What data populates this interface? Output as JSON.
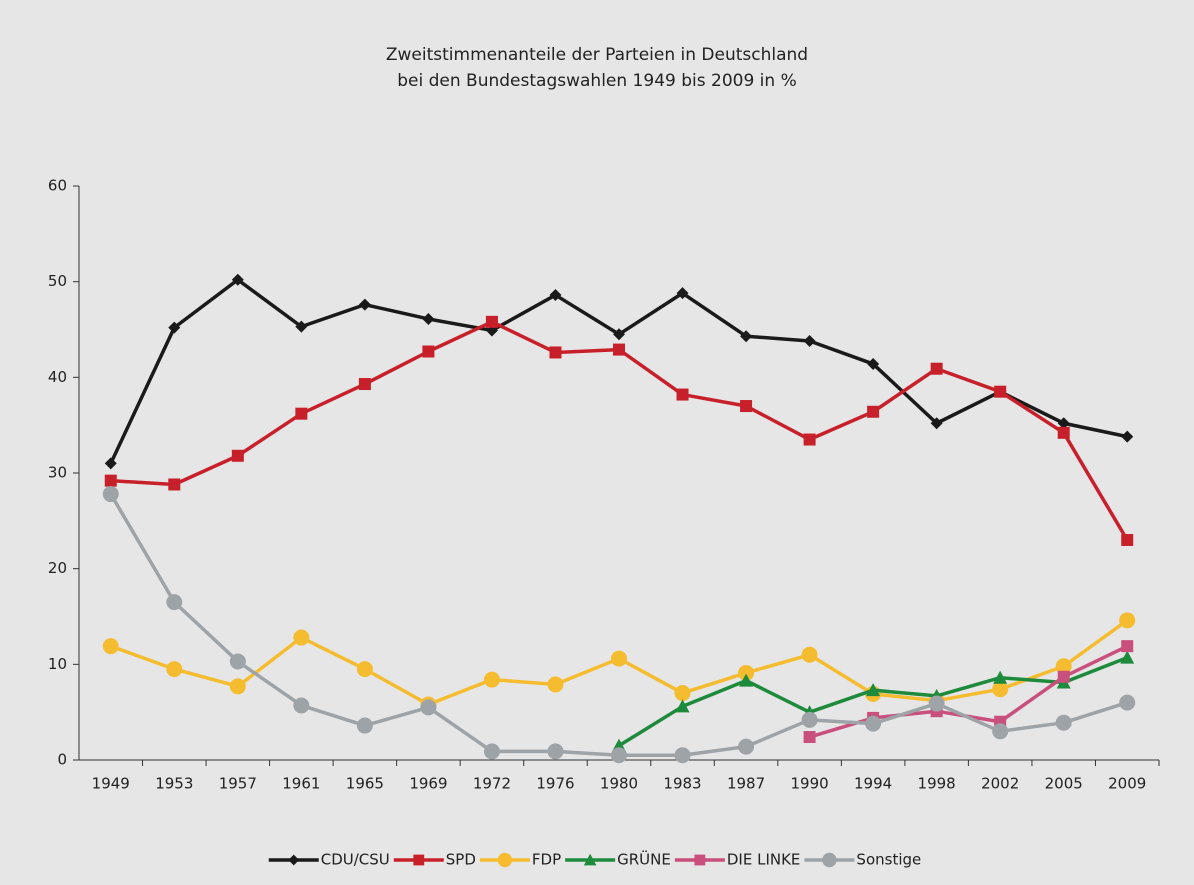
{
  "chart_data": {
    "type": "line",
    "title": [
      "Zweitstimmenanteile der Parteien in Deutschland",
      "bei den Bundestagswahlen 1949 bis 2009 in %"
    ],
    "categories": [
      "1949",
      "1953",
      "1957",
      "1961",
      "1965",
      "1969",
      "1972",
      "1976",
      "1980",
      "1983",
      "1987",
      "1990",
      "1994",
      "1998",
      "2002",
      "2005",
      "2009"
    ],
    "series": [
      {
        "name": "CDU/CSU",
        "color": "#1a1a1a",
        "marker": "diamond",
        "values": [
          31.0,
          45.2,
          50.2,
          45.3,
          47.6,
          46.1,
          44.9,
          48.6,
          44.5,
          48.8,
          44.3,
          43.8,
          41.4,
          35.2,
          38.5,
          35.2,
          33.8
        ]
      },
      {
        "name": "SPD",
        "color": "#c8202a",
        "marker": "square",
        "values": [
          29.2,
          28.8,
          31.8,
          36.2,
          39.3,
          42.7,
          45.8,
          42.6,
          42.9,
          38.2,
          37.0,
          33.5,
          36.4,
          40.9,
          38.5,
          34.2,
          23.0
        ]
      },
      {
        "name": "FDP",
        "color": "#f5bc2f",
        "marker": "circle",
        "values": [
          11.9,
          9.5,
          7.7,
          12.8,
          9.5,
          5.8,
          8.4,
          7.9,
          10.6,
          7.0,
          9.1,
          11.0,
          6.9,
          6.2,
          7.4,
          9.8,
          14.6
        ]
      },
      {
        "name": "GRÜNE",
        "color": "#1e8a3c",
        "marker": "triangle",
        "values": [
          null,
          null,
          null,
          null,
          null,
          null,
          null,
          null,
          1.5,
          5.6,
          8.3,
          5.0,
          7.3,
          6.7,
          8.6,
          8.1,
          10.7
        ]
      },
      {
        "name": "DIE LINKE",
        "color": "#c94f7c",
        "marker": "square",
        "values": [
          null,
          null,
          null,
          null,
          null,
          null,
          null,
          null,
          null,
          null,
          null,
          2.4,
          4.4,
          5.1,
          4.0,
          8.7,
          11.9
        ]
      },
      {
        "name": "Sonstige",
        "color": "#9ea3a8",
        "marker": "circle",
        "values": [
          27.8,
          16.5,
          10.3,
          5.7,
          3.6,
          5.5,
          0.9,
          0.9,
          0.5,
          0.5,
          1.4,
          4.2,
          3.8,
          5.9,
          3.0,
          3.9,
          6.0
        ]
      }
    ],
    "ylim": [
      0,
      60
    ],
    "yticks": [
      0,
      10,
      20,
      30,
      40,
      50,
      60
    ],
    "grid": false,
    "legend": "bottom"
  }
}
